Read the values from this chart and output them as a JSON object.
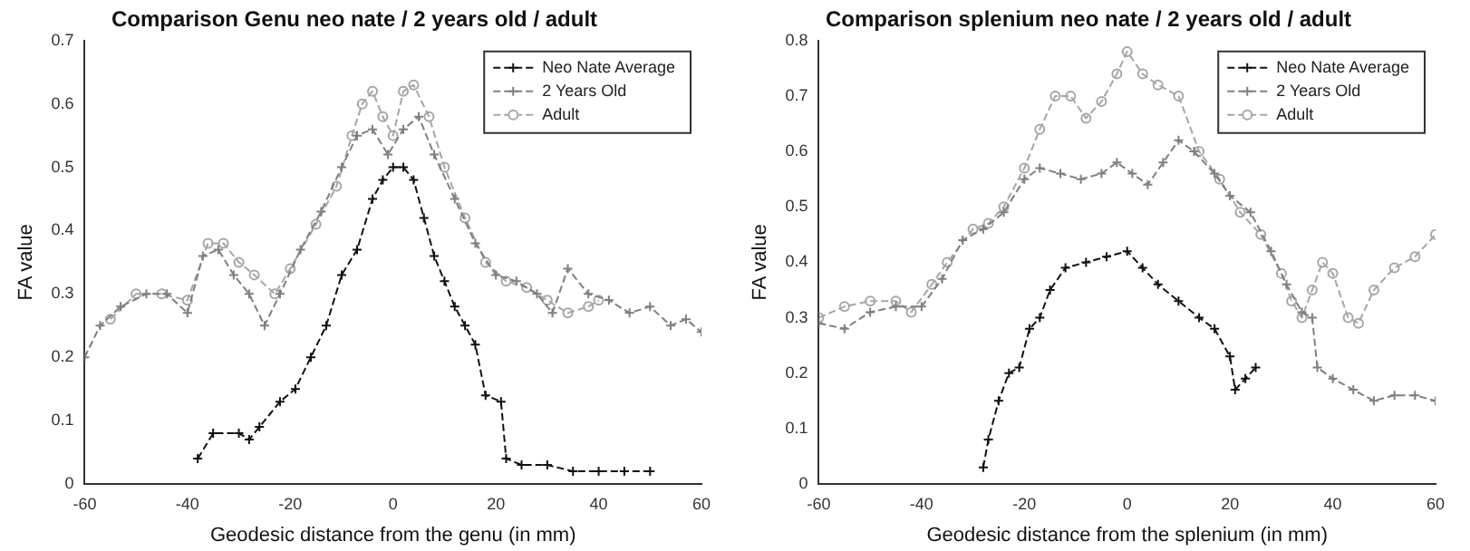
{
  "chart_data": [
    {
      "type": "line",
      "title": "Comparison Genu neo nate / 2 years old / adult",
      "xlabel": "Geodesic distance from the genu (in mm)",
      "ylabel": "FA value",
      "xlim": [
        -60,
        60
      ],
      "xticks": [
        -60,
        -40,
        -20,
        0,
        20,
        40,
        60
      ],
      "ylim": [
        0,
        0.7
      ],
      "yticks": [
        0,
        0.1,
        0.2,
        0.3,
        0.4,
        0.5,
        0.6,
        0.7
      ],
      "grid": false,
      "legend": "top right",
      "line_style": "dashed",
      "series": [
        {
          "name": "Neo Nate Average",
          "color": "#111111",
          "marker": "cross",
          "x": [
            -38,
            -35,
            -30,
            -28,
            -26,
            -22,
            -19,
            -16,
            -13,
            -10,
            -7,
            -4,
            -2,
            0,
            2,
            4,
            6,
            8,
            10,
            12,
            14,
            16,
            18,
            21,
            22,
            25,
            30,
            35,
            40,
            45,
            50
          ],
          "values": [
            0.04,
            0.08,
            0.08,
            0.07,
            0.09,
            0.13,
            0.15,
            0.2,
            0.25,
            0.33,
            0.37,
            0.45,
            0.48,
            0.5,
            0.5,
            0.48,
            0.42,
            0.36,
            0.32,
            0.28,
            0.25,
            0.22,
            0.14,
            0.13,
            0.04,
            0.03,
            0.03,
            0.02,
            0.02,
            0.02,
            0.02
          ]
        },
        {
          "name": "2 Years Old",
          "color": "#7f7f7f",
          "marker": "cross",
          "x": [
            -60,
            -57,
            -53,
            -48,
            -44,
            -40,
            -37,
            -34,
            -31,
            -28,
            -25,
            -22,
            -18,
            -14,
            -10,
            -7,
            -4,
            -1,
            2,
            5,
            8,
            12,
            16,
            20,
            24,
            28,
            31,
            34,
            38,
            42,
            46,
            50,
            54,
            57,
            60
          ],
          "values": [
            0.2,
            0.25,
            0.28,
            0.3,
            0.3,
            0.27,
            0.36,
            0.37,
            0.33,
            0.3,
            0.25,
            0.3,
            0.37,
            0.43,
            0.5,
            0.55,
            0.56,
            0.52,
            0.56,
            0.58,
            0.52,
            0.45,
            0.38,
            0.33,
            0.32,
            0.3,
            0.27,
            0.34,
            0.3,
            0.29,
            0.27,
            0.28,
            0.25,
            0.26,
            0.24
          ]
        },
        {
          "name": "Adult",
          "color": "#a6a6a6",
          "marker": "circle",
          "x": [
            -55,
            -50,
            -45,
            -40,
            -36,
            -33,
            -30,
            -27,
            -23,
            -20,
            -15,
            -11,
            -8,
            -6,
            -4,
            -2,
            0,
            2,
            4,
            7,
            10,
            14,
            18,
            22,
            26,
            30,
            34,
            38,
            40
          ],
          "values": [
            0.26,
            0.3,
            0.3,
            0.29,
            0.38,
            0.38,
            0.35,
            0.33,
            0.3,
            0.34,
            0.41,
            0.47,
            0.55,
            0.6,
            0.62,
            0.58,
            0.55,
            0.62,
            0.63,
            0.58,
            0.5,
            0.42,
            0.35,
            0.32,
            0.31,
            0.29,
            0.27,
            0.28,
            0.29
          ]
        }
      ]
    },
    {
      "type": "line",
      "title": "Comparison splenium neo nate / 2 years old / adult",
      "xlabel": "Geodesic distance from the splenium (in mm)",
      "ylabel": "FA value",
      "xlim": [
        -60,
        60
      ],
      "xticks": [
        -60,
        -40,
        -20,
        0,
        20,
        40,
        60
      ],
      "ylim": [
        0,
        0.8
      ],
      "yticks": [
        0,
        0.1,
        0.2,
        0.3,
        0.4,
        0.5,
        0.6,
        0.7,
        0.8
      ],
      "grid": false,
      "legend": "top right",
      "line_style": "dashed",
      "series": [
        {
          "name": "Neo Nate Average",
          "color": "#111111",
          "marker": "cross",
          "x": [
            -28,
            -27,
            -25,
            -23,
            -21,
            -19,
            -17,
            -15,
            -12,
            -8,
            -4,
            0,
            3,
            6,
            10,
            14,
            17,
            20,
            21,
            23,
            25
          ],
          "values": [
            0.03,
            0.08,
            0.15,
            0.2,
            0.21,
            0.28,
            0.3,
            0.35,
            0.39,
            0.4,
            0.41,
            0.42,
            0.39,
            0.36,
            0.33,
            0.3,
            0.28,
            0.23,
            0.17,
            0.19,
            0.21
          ]
        },
        {
          "name": "2 Years Old",
          "color": "#7f7f7f",
          "marker": "cross",
          "x": [
            -60,
            -55,
            -50,
            -45,
            -40,
            -36,
            -32,
            -28,
            -24,
            -20,
            -17,
            -13,
            -9,
            -5,
            -2,
            1,
            4,
            7,
            10,
            13,
            17,
            20,
            24,
            28,
            31,
            34,
            36,
            37,
            40,
            44,
            48,
            52,
            56,
            60
          ],
          "values": [
            0.29,
            0.28,
            0.31,
            0.32,
            0.32,
            0.37,
            0.44,
            0.46,
            0.49,
            0.55,
            0.57,
            0.56,
            0.55,
            0.56,
            0.58,
            0.56,
            0.54,
            0.58,
            0.62,
            0.6,
            0.56,
            0.52,
            0.49,
            0.42,
            0.36,
            0.31,
            0.3,
            0.21,
            0.19,
            0.17,
            0.15,
            0.16,
            0.16,
            0.15
          ]
        },
        {
          "name": "Adult",
          "color": "#a6a6a6",
          "marker": "circle",
          "x": [
            -60,
            -55,
            -50,
            -45,
            -42,
            -38,
            -35,
            -30,
            -27,
            -24,
            -20,
            -17,
            -14,
            -11,
            -8,
            -5,
            -2,
            0,
            3,
            6,
            10,
            14,
            18,
            22,
            26,
            30,
            32,
            34,
            36,
            38,
            40,
            43,
            45,
            48,
            52,
            56,
            60
          ],
          "values": [
            0.3,
            0.32,
            0.33,
            0.33,
            0.31,
            0.36,
            0.4,
            0.46,
            0.47,
            0.5,
            0.57,
            0.64,
            0.7,
            0.7,
            0.66,
            0.69,
            0.74,
            0.78,
            0.74,
            0.72,
            0.7,
            0.6,
            0.55,
            0.49,
            0.45,
            0.38,
            0.33,
            0.3,
            0.35,
            0.4,
            0.38,
            0.3,
            0.29,
            0.35,
            0.39,
            0.41,
            0.45
          ]
        }
      ]
    }
  ]
}
